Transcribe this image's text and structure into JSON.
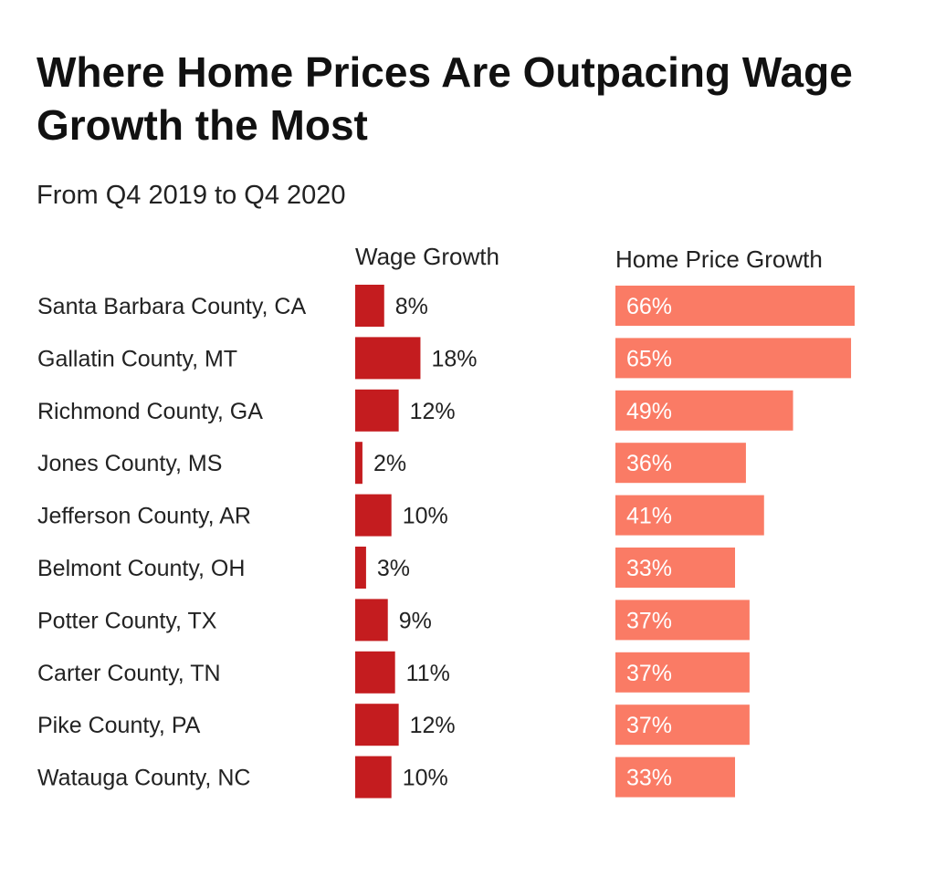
{
  "chart_data": {
    "type": "bar",
    "title": "Where Home Prices Are Outpacing Wage Growth the Most",
    "subtitle": "From Q4 2019 to Q4 2020",
    "categories": [
      "Santa Barbara County, CA",
      "Gallatin County, MT",
      "Richmond County, GA",
      "Jones County, MS",
      "Jefferson County, AR",
      "Belmont County, OH",
      "Potter County, TX",
      "Carter County, TN",
      "Pike County, PA",
      "Watauga County, NC"
    ],
    "series": [
      {
        "name": "Wage Growth",
        "values": [
          8,
          18,
          12,
          2,
          10,
          3,
          9,
          11,
          12,
          10
        ],
        "color": "#c41c1f",
        "label_color": "#222222"
      },
      {
        "name": "Home Price Growth",
        "values": [
          66,
          65,
          49,
          36,
          41,
          33,
          37,
          37,
          37,
          33
        ],
        "color": "#fa7b65",
        "label_color": "#ffffff"
      }
    ],
    "value_suffix": "%",
    "xlabel": "",
    "ylabel": "",
    "grid": false
  }
}
